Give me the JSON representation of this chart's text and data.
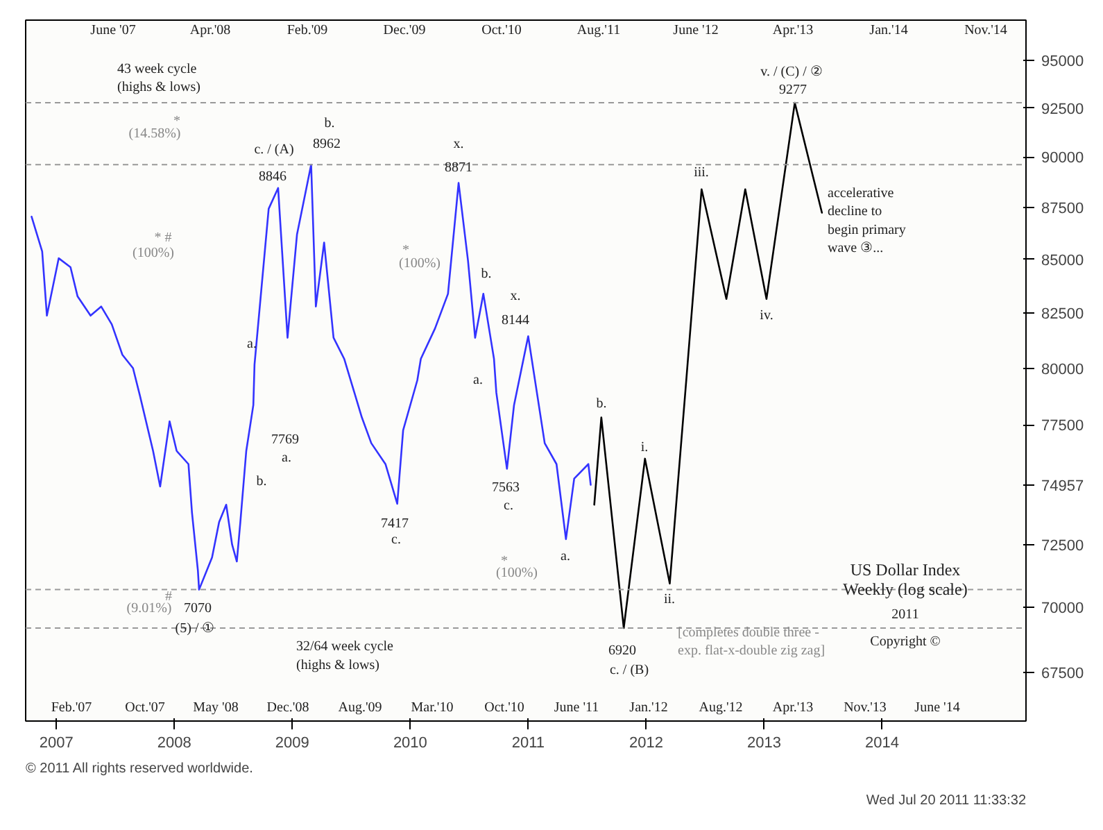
{
  "chart_data": {
    "type": "line",
    "title": "US Dollar Index",
    "subtitle": "Weekly (log scale)",
    "log": "y",
    "grid": false,
    "marker": "none",
    "line_style": "solid",
    "xlim": [
      2006.74,
      2015.22
    ],
    "xticks": [
      {
        "value": 2007,
        "label": "2007"
      },
      {
        "value": 2008,
        "label": "2008"
      },
      {
        "value": 2009,
        "label": "2009"
      },
      {
        "value": 2010,
        "label": "2010"
      },
      {
        "value": 2011,
        "label": "2011"
      },
      {
        "value": 2012,
        "label": "2012"
      },
      {
        "value": 2013,
        "label": "2013"
      },
      {
        "value": 2014,
        "label": "2014"
      }
    ],
    "ylim": [
      65700,
      97150
    ],
    "yticks": [
      67500,
      70000,
      72500,
      74957,
      77500,
      80000,
      82500,
      85000,
      87500,
      90000,
      92500,
      95000
    ],
    "series": [
      {
        "color": "#3333ff",
        "x": [
          2006.79,
          2006.88,
          2006.92,
          2007.02,
          2007.12,
          2007.18,
          2007.29,
          2007.38,
          2007.47,
          2007.56,
          2007.65,
          2007.71,
          2007.82,
          2007.88,
          2007.96,
          2008.02,
          2008.12,
          2008.15,
          2008.2,
          2008.21,
          2008.32,
          2008.38,
          2008.44,
          2008.49,
          2008.53,
          2008.56,
          2008.61,
          2008.67,
          2008.68,
          2008.8,
          2008.88,
          2008.96,
          2009.04,
          2009.16,
          2009.2,
          2009.27,
          2009.35,
          2009.44,
          2009.59,
          2009.67,
          2009.79,
          2009.89,
          2009.94,
          2010.06,
          2010.09,
          2010.21,
          2010.32,
          2010.41,
          2010.49,
          2010.55,
          2010.62,
          2010.71,
          2010.73,
          2010.82,
          2010.88,
          2011.0,
          2011.14,
          2011.24,
          2011.32,
          2011.39,
          2011.51,
          2011.53
        ],
        "values": [
          87060,
          85380,
          82380,
          85060,
          84640,
          83270,
          82380,
          82800,
          81980,
          80600,
          80000,
          78750,
          76390,
          74890,
          77660,
          76390,
          75830,
          73800,
          71460,
          70700,
          71980,
          73420,
          74130,
          72500,
          71820,
          73420,
          76390,
          78370,
          80160,
          87440,
          88460,
          81370,
          86190,
          89620,
          82800,
          85810,
          81370,
          80420,
          77830,
          76720,
          75830,
          74170,
          77280,
          79460,
          80420,
          81790,
          83390,
          88710,
          84940,
          81370,
          83390,
          80420,
          78910,
          75630,
          78370,
          81440,
          76720,
          75830,
          72720,
          75220,
          75830,
          74957
        ]
      },
      {
        "color": "#000000",
        "x": [
          2011.56,
          2011.62,
          2011.81,
          2011.99,
          2012.2,
          2012.34,
          2012.47,
          2012.68,
          2012.84,
          2013.02,
          2013.26,
          2013.49
        ],
        "values": [
          74130,
          77830,
          69200,
          76060,
          70940,
          79460,
          88400,
          83150,
          88400,
          83150,
          92770,
          87250
        ]
      }
    ],
    "ref_lines": [
      {
        "axis": "y",
        "value": 92770,
        "color": "#999999",
        "line_style": "dashed"
      },
      {
        "axis": "y",
        "value": 89620,
        "color": "#999999",
        "line_style": "dashed"
      },
      {
        "axis": "y",
        "value": 70700,
        "color": "#999999",
        "line_style": "dashed"
      },
      {
        "axis": "y",
        "value": 69200,
        "color": "#999999",
        "line_style": "dashed"
      }
    ],
    "annotations": [
      "c. / (A)",
      "8846",
      "b.",
      "8962",
      "x.",
      "8871",
      "a.",
      "b.",
      "7769",
      "a.",
      "7417",
      "c.",
      "x.",
      "8144",
      "b.",
      "a.",
      "7563",
      "c.",
      "a.",
      "7070",
      "(5) / ①",
      "(14.58%)",
      "*",
      "(100%)",
      "* #",
      "(100%)",
      "*",
      "(100%)",
      "*",
      "(9.01%)",
      "#",
      "b.",
      "6920",
      "c. / (B)",
      "i.",
      "ii.",
      "iii.",
      "iv.",
      "v. / (C) / ②",
      "9277",
      "accelerative\ndecline to\nbegin primary\nwave ③...",
      "[completes double three -\nexp. flat-x-double zig zag]",
      "43 week cycle\n(highs & lows)",
      "32/64 week cycle\n(highs & lows)",
      "2011",
      "Copyright ©",
      "Feb.'07",
      "Oct.'07",
      "May '08",
      "Dec.'08",
      "Aug.'09",
      "Mar.'10",
      "Oct.'10",
      "June '11",
      "Jan.'12",
      "Aug.'12",
      "Apr.'13",
      "Nov.'13",
      "June '14",
      "June '07",
      "Apr.'08",
      "Feb.'09",
      "Dec.'09",
      "Oct.'10",
      "Aug.'11",
      "June '12",
      "Apr.'13",
      "Jan.'14",
      "Nov.'14",
      "© 2011 All rights reserved worldwide.",
      "Wed Jul 20 2011 11:33:32"
    ]
  }
}
